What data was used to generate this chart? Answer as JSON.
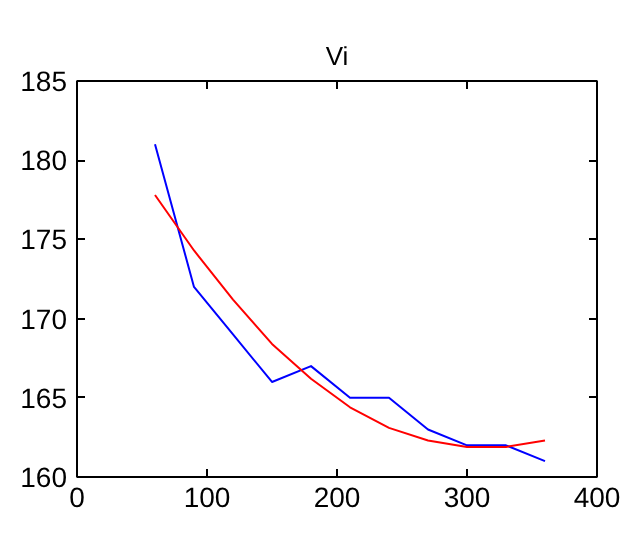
{
  "chart_data": {
    "type": "line",
    "title": "Vi",
    "xlim": [
      0,
      400
    ],
    "ylim": [
      160,
      185
    ],
    "xticks": [
      0,
      100,
      200,
      300,
      400
    ],
    "yticks": [
      160,
      165,
      170,
      175,
      180,
      185
    ],
    "grid": false,
    "marker": "none",
    "line_style": "solid",
    "series": [
      {
        "color": "#0000ff",
        "x": [
          60,
          90,
          120,
          150,
          180,
          210,
          240,
          270,
          300,
          330,
          360
        ],
        "values": [
          181,
          172,
          169,
          166,
          167,
          165,
          165,
          163,
          162,
          162,
          161
        ]
      },
      {
        "color": "#ff0000",
        "x": [
          60,
          90,
          120,
          150,
          180,
          210,
          240,
          270,
          300,
          330,
          360
        ],
        "values": [
          177.8,
          174.3,
          171.2,
          168.4,
          166.2,
          164.4,
          163.1,
          162.3,
          161.9,
          161.9,
          162.3
        ]
      }
    ]
  }
}
